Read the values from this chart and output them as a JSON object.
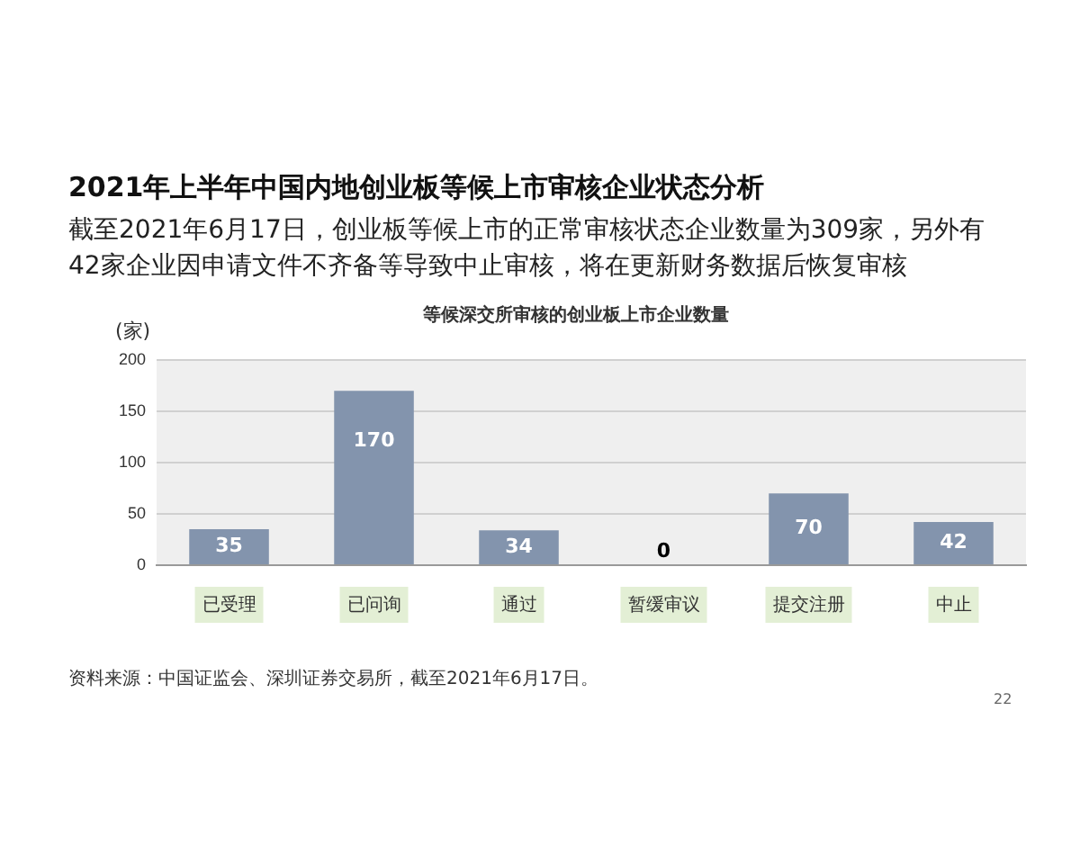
{
  "chart_data": {
    "type": "bar",
    "title": "2021年上半年中国内地创业板等候上市审核企业状态分析",
    "subtitle": "截至2021年6月17日，创业板等候上市的正常审核状态企业数量为309家，另外有42家企业因申请文件不齐备等导致中止审核，将在更新财务数据后恢复审核",
    "annotations": [
      "等候深交所审核的创业板上市企业数量",
      "资料来源：中国证监会、深圳证券交易所，截至2021年6月17日。",
      "22"
    ],
    "ylabel": "(家)",
    "categories": [
      "已受理",
      "已问询",
      "通过",
      "暂缓审议",
      "提交注册",
      "中止"
    ],
    "values": [
      35,
      170,
      34,
      0,
      70,
      42
    ],
    "color": "#8394ad",
    "ylim": [
      0,
      200
    ],
    "yticks": [
      0,
      50,
      100,
      150,
      200
    ],
    "grid": "y",
    "legend": false,
    "data_labels": true
  }
}
